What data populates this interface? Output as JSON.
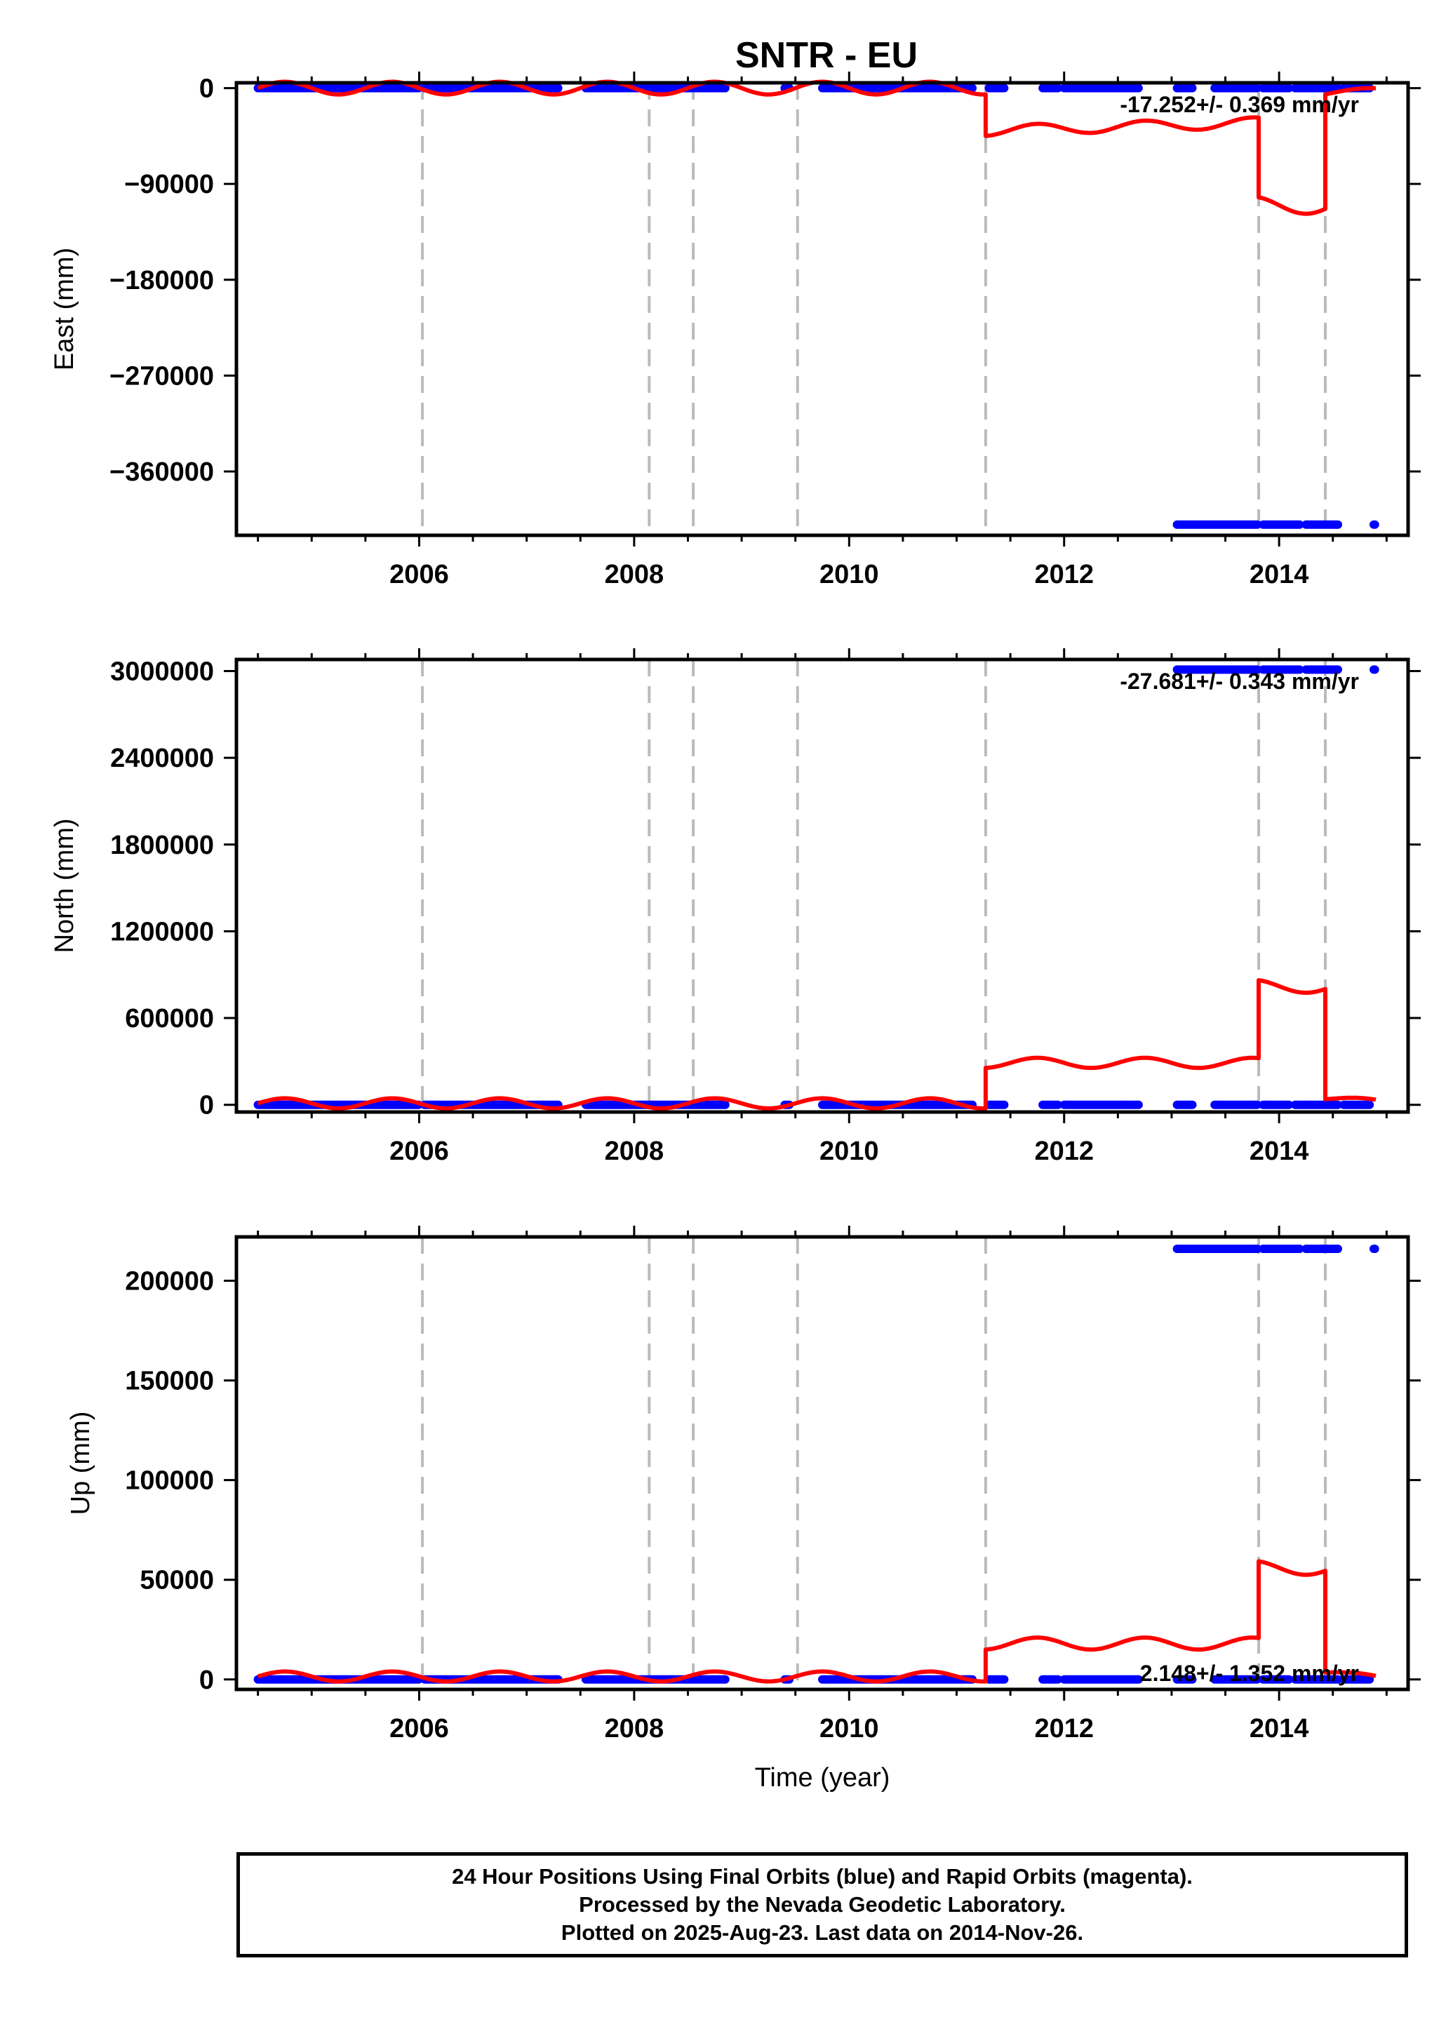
{
  "title": "SNTR - EU",
  "footer": {
    "line1": "24 Hour Positions Using Final Orbits (blue) and Rapid Orbits (magenta).",
    "line2": "Processed by the Nevada Geodetic Laboratory.",
    "line3": "Plotted on 2025-Aug-23. Last data on 2014-Nov-26."
  },
  "colors": {
    "data": "#0000ff",
    "model": "#ff0000",
    "steps": "#bbbbbb",
    "frame": "#000000"
  },
  "chart_data": [
    {
      "type": "scatter",
      "component": "East",
      "ylabel": "East (mm)",
      "xlabel": "",
      "xlim": [
        2004.3,
        2015.2
      ],
      "ylim": [
        -420000,
        5000
      ],
      "yticks": [
        0,
        -90000,
        -180000,
        -270000,
        -360000
      ],
      "yticklabels": [
        "0",
        "−90000",
        "−180000",
        "−270000",
        "−360000"
      ],
      "xticks": [
        2006,
        2008,
        2010,
        2012,
        2014
      ],
      "xticklabels": [
        "2006",
        "2008",
        "2010",
        "2012",
        "2014"
      ],
      "rate": "-17.252+/- 0.369 mm/yr",
      "rate_pos": "top-right",
      "offset_epochs": [
        2006.03,
        2008.14,
        2008.55,
        2009.52,
        2011.27,
        2013.81,
        2014.43
      ],
      "data_segments": [
        {
          "x_start": 2004.5,
          "x_end": 2006.0,
          "y": 0
        },
        {
          "x_start": 2006.05,
          "x_end": 2007.3,
          "y": 0
        },
        {
          "x_start": 2007.55,
          "x_end": 2008.85,
          "y": 0
        },
        {
          "x_start": 2009.4,
          "x_end": 2009.45,
          "y": 0
        },
        {
          "x_start": 2009.75,
          "x_end": 2011.15,
          "y": 0
        },
        {
          "x_start": 2011.3,
          "x_end": 2011.45,
          "y": 0
        },
        {
          "x_start": 2011.8,
          "x_end": 2011.95,
          "y": 0
        },
        {
          "x_start": 2012.0,
          "x_end": 2012.7,
          "y": 0
        },
        {
          "x_start": 2013.05,
          "x_end": 2013.2,
          "y": 0
        },
        {
          "x_start": 2013.4,
          "x_end": 2013.8,
          "y": 0
        },
        {
          "x_start": 2013.85,
          "x_end": 2014.1,
          "y": 0
        },
        {
          "x_start": 2014.15,
          "x_end": 2014.55,
          "y": 0
        },
        {
          "x_start": 2014.6,
          "x_end": 2014.85,
          "y": 0
        },
        {
          "x_start": 2013.05,
          "x_end": 2013.8,
          "y": -410000
        },
        {
          "x_start": 2013.85,
          "x_end": 2014.2,
          "y": -410000
        },
        {
          "x_start": 2014.25,
          "x_end": 2014.55,
          "y": -410000
        },
        {
          "x_start": 2014.88,
          "x_end": 2014.9,
          "y": -410000
        }
      ],
      "model_segments": [
        {
          "x_start": 2004.5,
          "x_end": 2011.27,
          "base": 0,
          "amp": 6000,
          "trend": 0
        },
        {
          "x_start": 2011.27,
          "x_end": 2013.81,
          "base": -40000,
          "amp": 5000,
          "trend": 3000
        },
        {
          "x_start": 2013.81,
          "x_end": 2014.43,
          "base": -110000,
          "amp": 8000,
          "trend": 0
        },
        {
          "x_start": 2014.43,
          "x_end": 2014.9,
          "base": -5000,
          "amp": 2000,
          "trend": 8000
        }
      ]
    },
    {
      "type": "scatter",
      "component": "North",
      "ylabel": "North (mm)",
      "xlabel": "",
      "xlim": [
        2004.3,
        2015.2
      ],
      "ylim": [
        -50000,
        3080000
      ],
      "yticks": [
        0,
        600000,
        1200000,
        1800000,
        2400000,
        3000000
      ],
      "yticklabels": [
        "0",
        "600000",
        "1200000",
        "1800000",
        "2400000",
        "3000000"
      ],
      "xticks": [
        2006,
        2008,
        2010,
        2012,
        2014
      ],
      "xticklabels": [
        "2006",
        "2008",
        "2010",
        "2012",
        "2014"
      ],
      "rate": "-27.681+/- 0.343 mm/yr",
      "rate_pos": "top-right",
      "offset_epochs": [
        2006.03,
        2008.14,
        2008.55,
        2009.52,
        2011.27,
        2013.81,
        2014.43
      ],
      "data_segments": [
        {
          "x_start": 2004.5,
          "x_end": 2006.0,
          "y": 0
        },
        {
          "x_start": 2006.05,
          "x_end": 2007.3,
          "y": 0
        },
        {
          "x_start": 2007.55,
          "x_end": 2008.85,
          "y": 0
        },
        {
          "x_start": 2009.4,
          "x_end": 2009.45,
          "y": 0
        },
        {
          "x_start": 2009.75,
          "x_end": 2011.15,
          "y": 0
        },
        {
          "x_start": 2011.3,
          "x_end": 2011.45,
          "y": 0
        },
        {
          "x_start": 2011.8,
          "x_end": 2011.95,
          "y": 0
        },
        {
          "x_start": 2012.0,
          "x_end": 2012.7,
          "y": 0
        },
        {
          "x_start": 2013.05,
          "x_end": 2013.2,
          "y": 0
        },
        {
          "x_start": 2013.4,
          "x_end": 2013.8,
          "y": 0
        },
        {
          "x_start": 2013.85,
          "x_end": 2014.1,
          "y": 0
        },
        {
          "x_start": 2014.15,
          "x_end": 2014.55,
          "y": 0
        },
        {
          "x_start": 2014.6,
          "x_end": 2014.85,
          "y": 0
        },
        {
          "x_start": 2013.05,
          "x_end": 2013.8,
          "y": 3010000
        },
        {
          "x_start": 2013.85,
          "x_end": 2014.2,
          "y": 3010000
        },
        {
          "x_start": 2014.25,
          "x_end": 2014.55,
          "y": 3010000
        },
        {
          "x_start": 2014.88,
          "x_end": 2014.9,
          "y": 3010000
        }
      ],
      "model_segments": [
        {
          "x_start": 2004.5,
          "x_end": 2011.27,
          "base": 10000,
          "amp": 35000,
          "trend": 0
        },
        {
          "x_start": 2011.27,
          "x_end": 2013.81,
          "base": 290000,
          "amp": 35000,
          "trend": 0
        },
        {
          "x_start": 2013.81,
          "x_end": 2014.43,
          "base": 820000,
          "amp": 45000,
          "trend": 0
        },
        {
          "x_start": 2014.43,
          "x_end": 2014.9,
          "base": 45000,
          "amp": 15000,
          "trend": -40000
        }
      ]
    },
    {
      "type": "scatter",
      "component": "Up",
      "ylabel": "Up (mm)",
      "xlabel": "Time (year)",
      "xlim": [
        2004.3,
        2015.2
      ],
      "ylim": [
        -5000,
        222000
      ],
      "yticks": [
        0,
        50000,
        100000,
        150000,
        200000
      ],
      "yticklabels": [
        "0",
        "50000",
        "100000",
        "150000",
        "200000"
      ],
      "xticks": [
        2006,
        2008,
        2010,
        2012,
        2014
      ],
      "xticklabels": [
        "2006",
        "2008",
        "2010",
        "2012",
        "2014"
      ],
      "rate": "2.148+/- 1.352 mm/yr",
      "rate_pos": "bottom-right",
      "offset_epochs": [
        2006.03,
        2008.14,
        2008.55,
        2009.52,
        2011.27,
        2013.81,
        2014.43
      ],
      "data_segments": [
        {
          "x_start": 2004.5,
          "x_end": 2006.0,
          "y": 0
        },
        {
          "x_start": 2006.05,
          "x_end": 2007.3,
          "y": 0
        },
        {
          "x_start": 2007.55,
          "x_end": 2008.85,
          "y": 0
        },
        {
          "x_start": 2009.4,
          "x_end": 2009.45,
          "y": 0
        },
        {
          "x_start": 2009.75,
          "x_end": 2011.15,
          "y": 0
        },
        {
          "x_start": 2011.3,
          "x_end": 2011.45,
          "y": 0
        },
        {
          "x_start": 2011.8,
          "x_end": 2011.95,
          "y": 0
        },
        {
          "x_start": 2012.0,
          "x_end": 2012.7,
          "y": 0
        },
        {
          "x_start": 2013.05,
          "x_end": 2013.2,
          "y": 0
        },
        {
          "x_start": 2013.4,
          "x_end": 2013.8,
          "y": 0
        },
        {
          "x_start": 2013.85,
          "x_end": 2014.1,
          "y": 0
        },
        {
          "x_start": 2014.15,
          "x_end": 2014.55,
          "y": 0
        },
        {
          "x_start": 2014.6,
          "x_end": 2014.85,
          "y": 0
        },
        {
          "x_start": 2013.05,
          "x_end": 2013.8,
          "y": 216000
        },
        {
          "x_start": 2013.85,
          "x_end": 2014.2,
          "y": 216000
        },
        {
          "x_start": 2014.25,
          "x_end": 2014.55,
          "y": 216000
        },
        {
          "x_start": 2014.88,
          "x_end": 2014.9,
          "y": 216000
        }
      ],
      "model_segments": [
        {
          "x_start": 2004.5,
          "x_end": 2011.27,
          "base": 1500,
          "amp": 2500,
          "trend": 0
        },
        {
          "x_start": 2011.27,
          "x_end": 2013.81,
          "base": 18000,
          "amp": 3000,
          "trend": 0
        },
        {
          "x_start": 2013.81,
          "x_end": 2014.43,
          "base": 56000,
          "amp": 3500,
          "trend": 0
        },
        {
          "x_start": 2014.43,
          "x_end": 2014.9,
          "base": 4000,
          "amp": 1000,
          "trend": -6000
        }
      ]
    }
  ]
}
